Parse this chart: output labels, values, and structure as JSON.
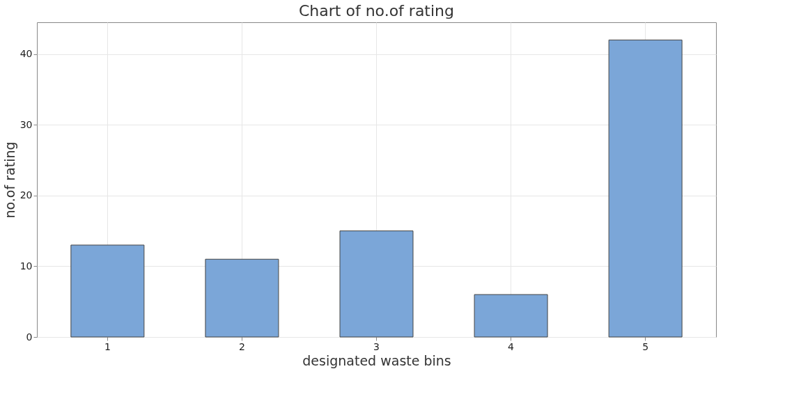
{
  "chart_data": {
    "type": "bar",
    "title": "Chart of no.of rating",
    "xlabel": "designated waste bins",
    "ylabel": "no.of rating",
    "categories": [
      "1",
      "2",
      "3",
      "4",
      "5"
    ],
    "values": [
      13,
      11,
      15,
      6,
      42
    ],
    "color": "#7ba6d8",
    "ylim": [
      0,
      44.5
    ],
    "yticks": [
      0,
      10,
      20,
      30,
      40
    ],
    "grid": true
  }
}
